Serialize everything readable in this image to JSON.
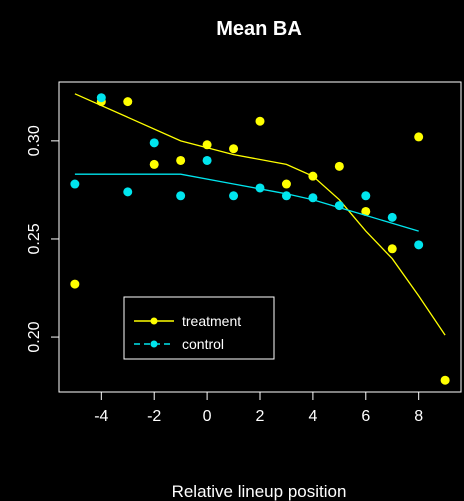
{
  "chart_data": {
    "type": "scatter",
    "title": "Mean BA",
    "xlabel": "Relative lineup position",
    "ylabel": "",
    "xlim": [
      -5.6,
      9.6
    ],
    "ylim": [
      0.172,
      0.33
    ],
    "x_ticks": [
      -4,
      -2,
      0,
      2,
      4,
      6,
      8
    ],
    "x_tick_labels": [
      "-4",
      "-2",
      "0",
      "2",
      "4",
      "6",
      "8"
    ],
    "y_ticks": [
      0.2,
      0.25,
      0.3
    ],
    "y_tick_labels": [
      "0.20",
      "0.25",
      "0.30"
    ],
    "grid": false,
    "legend_position": "bottom-left",
    "series": [
      {
        "name": "treatment",
        "color": "#ffff00",
        "points": [
          {
            "x": -5,
            "y": 0.227
          },
          {
            "x": -4,
            "y": 0.32
          },
          {
            "x": -3,
            "y": 0.32
          },
          {
            "x": -2,
            "y": 0.288
          },
          {
            "x": -1,
            "y": 0.29
          },
          {
            "x": 0,
            "y": 0.298
          },
          {
            "x": 1,
            "y": 0.296
          },
          {
            "x": 2,
            "y": 0.31
          },
          {
            "x": 3,
            "y": 0.278
          },
          {
            "x": 4,
            "y": 0.282
          },
          {
            "x": 5,
            "y": 0.287
          },
          {
            "x": 6,
            "y": 0.264
          },
          {
            "x": 7,
            "y": 0.245
          },
          {
            "x": 8,
            "y": 0.302
          },
          {
            "x": 9,
            "y": 0.178
          }
        ],
        "smooth": [
          {
            "x": -5,
            "y": 0.324
          },
          {
            "x": -3,
            "y": 0.312
          },
          {
            "x": -1,
            "y": 0.3
          },
          {
            "x": 1,
            "y": 0.293
          },
          {
            "x": 3,
            "y": 0.288
          },
          {
            "x": 4,
            "y": 0.282
          },
          {
            "x": 5,
            "y": 0.27
          },
          {
            "x": 6,
            "y": 0.254
          },
          {
            "x": 7,
            "y": 0.24
          },
          {
            "x": 8,
            "y": 0.221
          },
          {
            "x": 9,
            "y": 0.201
          }
        ]
      },
      {
        "name": "control",
        "color": "#00e5ee",
        "points": [
          {
            "x": -5,
            "y": 0.278
          },
          {
            "x": -4,
            "y": 0.322
          },
          {
            "x": -3,
            "y": 0.274
          },
          {
            "x": -2,
            "y": 0.299
          },
          {
            "x": -1,
            "y": 0.272
          },
          {
            "x": 0,
            "y": 0.29
          },
          {
            "x": 1,
            "y": 0.272
          },
          {
            "x": 2,
            "y": 0.276
          },
          {
            "x": 3,
            "y": 0.272
          },
          {
            "x": 4,
            "y": 0.271
          },
          {
            "x": 5,
            "y": 0.267
          },
          {
            "x": 6,
            "y": 0.272
          },
          {
            "x": 7,
            "y": 0.261
          },
          {
            "x": 8,
            "y": 0.247
          }
        ],
        "smooth": [
          {
            "x": -5,
            "y": 0.283
          },
          {
            "x": -3,
            "y": 0.283
          },
          {
            "x": -1,
            "y": 0.283
          },
          {
            "x": 1,
            "y": 0.278
          },
          {
            "x": 3,
            "y": 0.273
          },
          {
            "x": 4,
            "y": 0.27
          },
          {
            "x": 5,
            "y": 0.266
          },
          {
            "x": 6,
            "y": 0.262
          },
          {
            "x": 7,
            "y": 0.258
          },
          {
            "x": 8,
            "y": 0.254
          }
        ]
      }
    ]
  }
}
